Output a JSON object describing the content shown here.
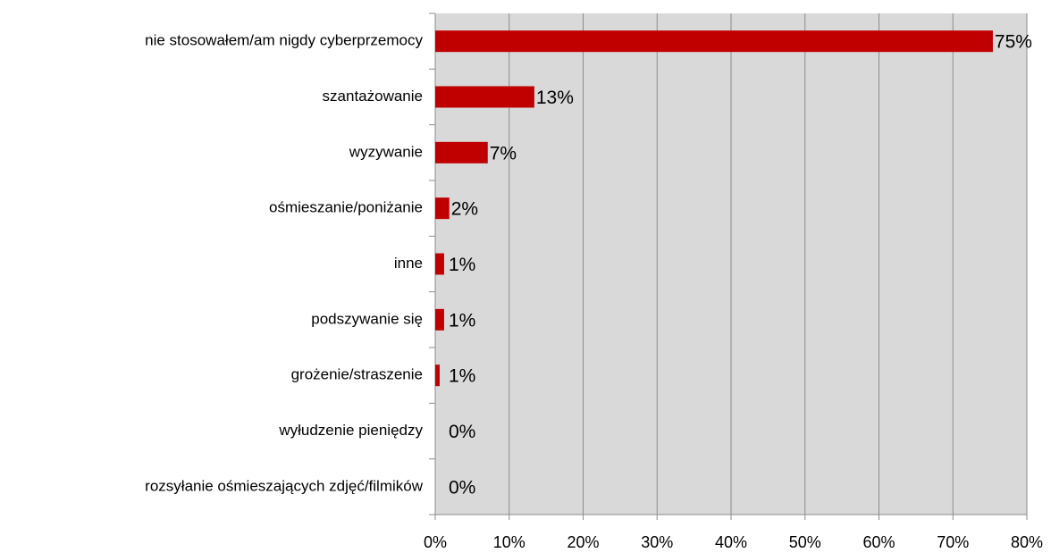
{
  "chart_data": {
    "type": "barh",
    "categories": [
      "nie stosowałem/am nigdy cyberprzemocy",
      "szantażowanie",
      "wyzywanie",
      "ośmieszanie/poniżanie",
      "inne",
      "podszywanie się",
      "grożenie/straszenie",
      "wyłudzenie pieniędzy",
      "rozsyłanie ośmieszających zdjęć/filmików"
    ],
    "values": [
      75.4,
      13.4,
      7.1,
      1.9,
      1.2,
      1.2,
      0.6,
      0,
      0
    ],
    "value_labels": [
      "75%",
      "13%",
      "7%",
      "2%",
      "1%",
      "1%",
      "1%",
      "0%",
      "0%"
    ],
    "color": "#c00000",
    "xlim": [
      0,
      80
    ],
    "xticks": [
      {
        "value": 0,
        "label": "0%"
      },
      {
        "value": 10,
        "label": "10%"
      },
      {
        "value": 20,
        "label": "20%"
      },
      {
        "value": 30,
        "label": "30%"
      },
      {
        "value": 40,
        "label": "40%"
      },
      {
        "value": 50,
        "label": "50%"
      },
      {
        "value": 60,
        "label": "60%"
      },
      {
        "value": 70,
        "label": "70%"
      },
      {
        "value": 80,
        "label": "80%"
      }
    ],
    "grid": true
  }
}
